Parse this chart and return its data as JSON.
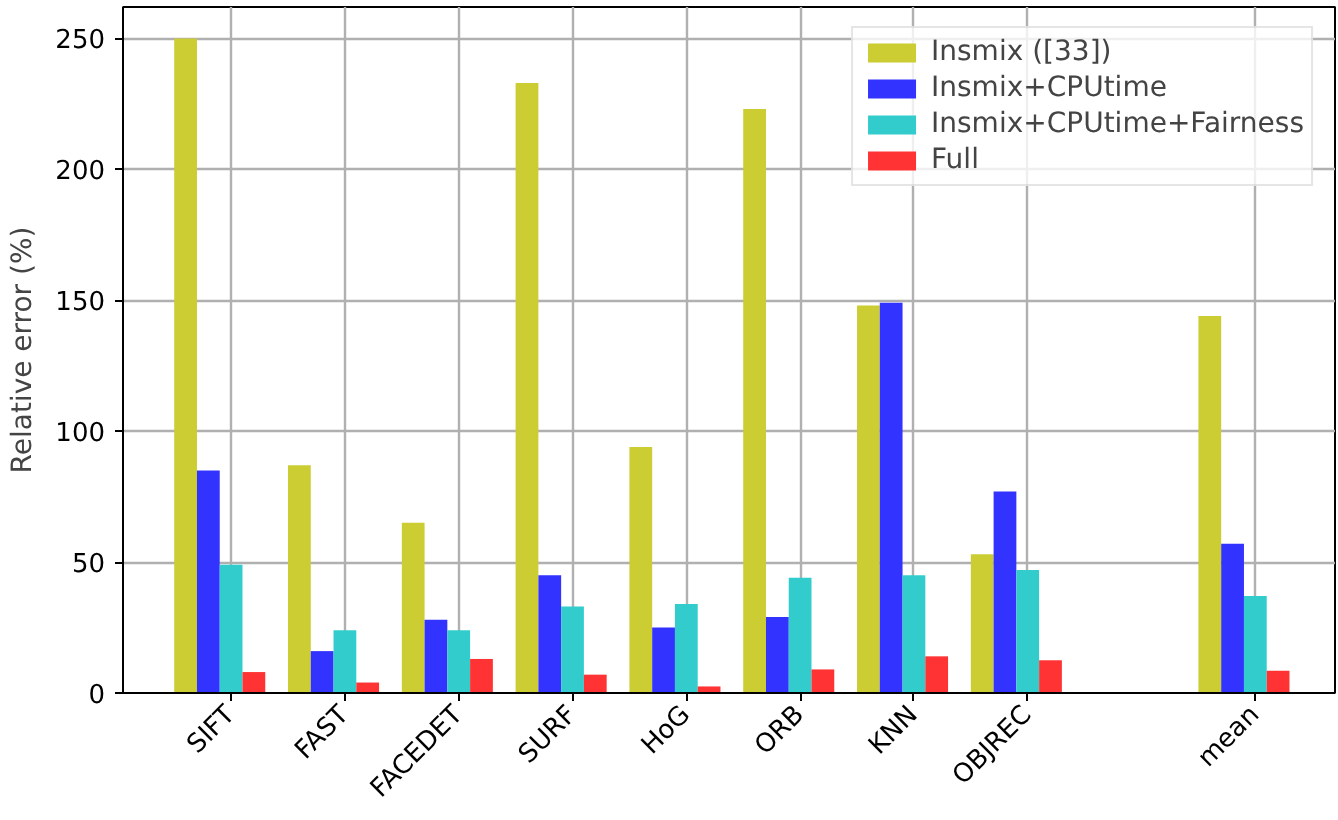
{
  "chart_data": {
    "type": "bar",
    "ylabel": "Relative error (%)",
    "categories": [
      "SIFT",
      "FAST",
      "FACEDET",
      "SURF",
      "HoG",
      "ORB",
      "KNN",
      "OBJREC",
      null,
      "mean"
    ],
    "ylim": [
      0,
      262
    ],
    "yticks": [
      0,
      50,
      100,
      150,
      200,
      250
    ],
    "series": [
      {
        "name": "Insmix ([33])",
        "color": "#cccc33",
        "values": [
          250,
          87,
          65,
          233,
          94,
          223,
          148,
          53,
          null,
          144
        ]
      },
      {
        "name": "Insmix+CPUtime",
        "color": "#3333ff",
        "values": [
          85,
          16,
          28,
          45,
          25,
          29,
          149,
          77,
          null,
          57
        ]
      },
      {
        "name": "Insmix+CPUtime+Fairness",
        "color": "#33cccc",
        "values": [
          49,
          24,
          24,
          33,
          34,
          44,
          45,
          47,
          null,
          37
        ]
      },
      {
        "name": "Full",
        "color": "#ff3333",
        "values": [
          8,
          4,
          13,
          7,
          2.5,
          9,
          14,
          12.5,
          null,
          8.5
        ]
      }
    ],
    "grid": true,
    "legend": "top right"
  }
}
